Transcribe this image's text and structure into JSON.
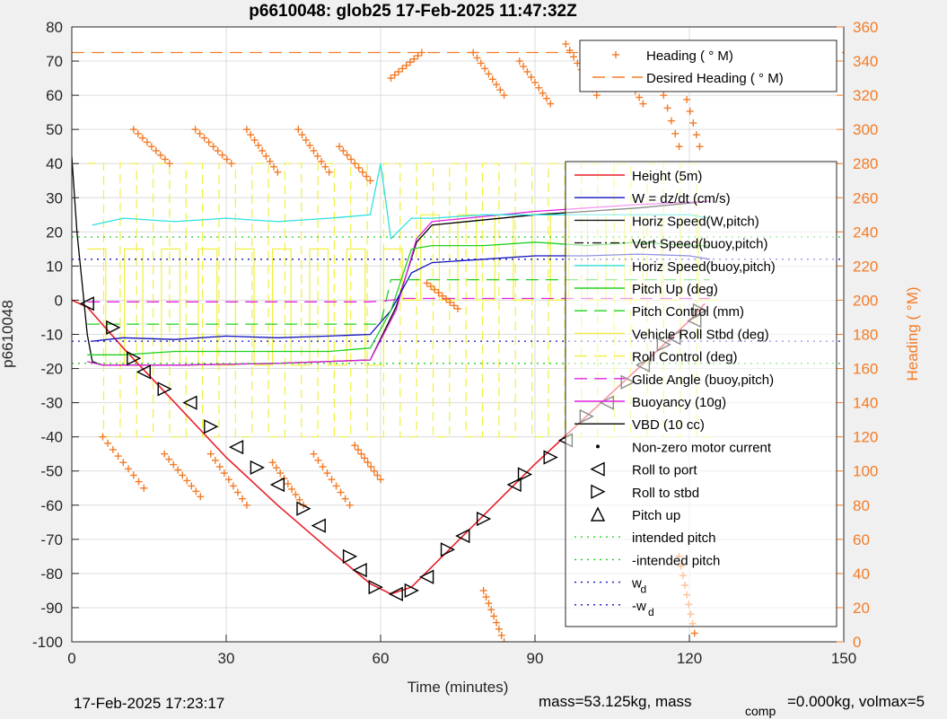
{
  "chart_data": {
    "type": "line",
    "title": "p6610048: glob25 17-Feb-2025 11:47:32Z",
    "xlabel": "Time (minutes)",
    "ylabel": "p6610048",
    "y2label": "Heading (  °M)",
    "xlim": [
      0,
      150
    ],
    "ylim": [
      -100,
      80
    ],
    "y2lim": [
      0,
      360
    ],
    "xticks": [
      "0",
      "30",
      "60",
      "90",
      "120",
      "150"
    ],
    "yticks": [
      "80",
      "70",
      "60",
      "50",
      "40",
      "30",
      "20",
      "10",
      "0",
      "-10",
      "-20",
      "-30",
      "-40",
      "-50",
      "-60",
      "-70",
      "-80",
      "-90",
      "-100"
    ],
    "y2ticks": [
      "360",
      "340",
      "320",
      "300",
      "280",
      "260",
      "240",
      "220",
      "200",
      "180",
      "160",
      "140",
      "120",
      "100",
      "80",
      "60",
      "40",
      "20",
      "0"
    ],
    "grid": true,
    "footer_left": "17-Feb-2025 17:23:17",
    "footer_right_a": "mass=53.125kg, mass",
    "footer_right_sub": "comp",
    "footer_right_b": "=0.000kg, volmax=5",
    "legend_heading": [
      {
        "label": "Heading (  ° M)",
        "color": "#f47b26",
        "style": "plus"
      },
      {
        "label": "Desired Heading (    ° M)",
        "color": "#f47b26",
        "style": "dash"
      }
    ],
    "legend_main": [
      {
        "label": "Height (5m)",
        "color": "#e8202a",
        "style": "solid"
      },
      {
        "label": "W = dz/dt (cm/s)",
        "color": "#1010c0",
        "style": "solid"
      },
      {
        "label": "Horiz Speed(W,pitch)",
        "color": "#1a1a1a",
        "style": "solid"
      },
      {
        "label": "Vert Speed(buoy,pitch)",
        "color": "#1a1a1a",
        "style": "dashdot"
      },
      {
        "label": "Horiz Speed(buoy,pitch)",
        "color": "#30e0e0",
        "style": "solid"
      },
      {
        "label": "Pitch Up (deg)",
        "color": "#20d020",
        "style": "solid"
      },
      {
        "label": "Pitch Control (mm)",
        "color": "#20d020",
        "style": "dash"
      },
      {
        "label": "Vehicle Roll Stbd (deg)",
        "color": "#f0f040",
        "style": "solid"
      },
      {
        "label": "Roll Control (deg)",
        "color": "#f0f040",
        "style": "dash"
      },
      {
        "label": "Glide Angle (buoy,pitch)",
        "color": "#e020e0",
        "style": "dash"
      },
      {
        "label": "Buoyancy (10g)",
        "color": "#e020e0",
        "style": "solid"
      },
      {
        "label": "VBD (10 cc)",
        "color": "#000000",
        "style": "solid"
      },
      {
        "label": "Non-zero motor current",
        "color": "#000000",
        "style": "dot"
      },
      {
        "label": "Roll to port",
        "color": "#000000",
        "style": "tri-left"
      },
      {
        "label": "Roll to stbd",
        "color": "#000000",
        "style": "tri-right"
      },
      {
        "label": "Pitch up",
        "color": "#000000",
        "style": "tri-up"
      },
      {
        "label": "intended pitch",
        "color": "#20d020",
        "style": "dotted"
      },
      {
        "label": "-intended pitch",
        "color": "#20d020",
        "style": "dotted"
      },
      {
        "label": "w",
        "sub": "d",
        "color": "#1010c0",
        "style": "dotted"
      },
      {
        "label": "-w",
        "sub": "d",
        "color": "#1010c0",
        "style": "dotted"
      }
    ],
    "series": [
      {
        "name": "Height (5m)",
        "color": "#e8202a",
        "x": [
          0,
          3,
          10,
          20,
          30,
          40,
          50,
          58,
          62,
          66,
          70,
          80,
          90,
          100,
          110,
          120,
          123
        ],
        "y": [
          0,
          -2,
          -14,
          -30,
          -46,
          -60,
          -73,
          -83,
          -86,
          -84,
          -78,
          -63,
          -48,
          -34,
          -20,
          -6,
          -1
        ]
      },
      {
        "name": "VBD (10 cc)",
        "color": "#000000",
        "x": [
          0,
          1,
          2,
          3,
          4,
          6,
          10,
          20,
          40,
          58,
          63,
          67,
          70,
          90,
          110,
          124
        ],
        "y": [
          42,
          20,
          5,
          -10,
          -18,
          -19,
          -19,
          -19,
          -18.5,
          -17.5,
          -2,
          17,
          22,
          25,
          27,
          29
        ]
      },
      {
        "name": "Buoyancy (10g)",
        "color": "#e020e0",
        "x": [
          3,
          6,
          20,
          40,
          58,
          63,
          67,
          70,
          90,
          110,
          124
        ],
        "y": [
          -18,
          -19,
          -19,
          -18.5,
          -17.5,
          -3,
          18,
          23,
          26,
          28,
          29
        ]
      },
      {
        "name": "W = dz/dt (cm/s)",
        "color": "#1010c0",
        "x": [
          4,
          10,
          20,
          30,
          40,
          50,
          58,
          62,
          66,
          70,
          80,
          90,
          100,
          110,
          120,
          124
        ],
        "y": [
          -12,
          -11,
          -11.5,
          -10.5,
          -11,
          -10.5,
          -10,
          -3,
          8,
          11,
          12,
          13,
          13,
          13.5,
          13,
          12
        ]
      },
      {
        "name": "Horiz Speed(buoy,pitch)",
        "color": "#30e0e0",
        "x": [
          4,
          10,
          20,
          30,
          40,
          50,
          58,
          60,
          62,
          66,
          70,
          80,
          90,
          100,
          110,
          120,
          124
        ],
        "y": [
          22,
          24,
          23,
          24,
          23,
          24,
          25,
          40,
          18,
          24,
          24,
          25,
          25,
          25,
          25,
          25,
          24
        ]
      },
      {
        "name": "Pitch Up (deg)",
        "color": "#20d020",
        "x": [
          3,
          10,
          20,
          30,
          40,
          50,
          58,
          62,
          66,
          70,
          80,
          90,
          100,
          110,
          120,
          124
        ],
        "y": [
          -16,
          -16,
          -15,
          -15,
          -15,
          -15,
          -14,
          -3,
          15,
          16,
          16,
          17,
          16,
          17,
          16,
          16
        ]
      },
      {
        "name": "Pitch Control (mm)",
        "color": "#20d020",
        "x": [
          3,
          58,
          60,
          62,
          124
        ],
        "y": [
          -7,
          -7,
          -7,
          6,
          6
        ]
      },
      {
        "name": "Glide Angle (buoy,pitch)",
        "color": "#e020e0",
        "x": [
          3,
          58,
          62,
          64,
          124
        ],
        "y": [
          -0.5,
          -0.5,
          0,
          0.5,
          0.5
        ]
      },
      {
        "name": "Desired Heading (    ° M)",
        "color": "#f47b26",
        "axis": "right",
        "x": [
          0,
          150
        ],
        "y": [
          345,
          345
        ]
      },
      {
        "name": "intended pitch",
        "color": "#20d020",
        "x": [
          0,
          150
        ],
        "y": [
          18.5,
          18.5
        ]
      },
      {
        "name": "-intended pitch",
        "color": "#20d020",
        "x": [
          0,
          150
        ],
        "y": [
          -18.5,
          -18.5
        ]
      },
      {
        "name": "w",
        "color": "#1010c0",
        "x": [
          0,
          150
        ],
        "y": [
          12,
          12
        ]
      },
      {
        "name": "-w",
        "color": "#1010c0",
        "x": [
          0,
          150
        ],
        "y": [
          -12,
          -12
        ]
      }
    ],
    "markers": {
      "roll_to_port": [
        [
          3,
          -1
        ],
        [
          14,
          -21
        ],
        [
          23,
          -30
        ],
        [
          32,
          -43
        ],
        [
          40,
          -54
        ],
        [
          48,
          -66
        ],
        [
          56,
          -79
        ],
        [
          63,
          -86
        ],
        [
          69,
          -81
        ],
        [
          76,
          -69
        ],
        [
          86,
          -54
        ],
        [
          96,
          -41
        ],
        [
          104,
          -30
        ],
        [
          111,
          -19
        ],
        [
          117,
          -11
        ],
        [
          121,
          -6
        ]
      ],
      "roll_to_stbd": [
        [
          8,
          -8
        ],
        [
          12,
          -17
        ],
        [
          18,
          -26
        ],
        [
          27,
          -37
        ],
        [
          36,
          -49
        ],
        [
          45,
          -61
        ],
        [
          54,
          -75
        ],
        [
          59,
          -84
        ],
        [
          66,
          -85
        ],
        [
          73,
          -73
        ],
        [
          80,
          -64
        ],
        [
          88,
          -51
        ],
        [
          93,
          -46
        ],
        [
          100,
          -34
        ],
        [
          108,
          -24
        ],
        [
          115,
          -13
        ],
        [
          122,
          -3
        ]
      ]
    },
    "heading_clusters": [
      {
        "x0": 6,
        "x1": 14,
        "h0": 120,
        "h1": 90
      },
      {
        "x0": 12,
        "x1": 19,
        "h0": 300,
        "h1": 280
      },
      {
        "x0": 18,
        "x1": 25,
        "h0": 110,
        "h1": 85
      },
      {
        "x0": 24,
        "x1": 31,
        "h0": 300,
        "h1": 280
      },
      {
        "x0": 27,
        "x1": 34,
        "h0": 110,
        "h1": 80
      },
      {
        "x0": 34,
        "x1": 40,
        "h0": 300,
        "h1": 275
      },
      {
        "x0": 39,
        "x1": 45,
        "h0": 105,
        "h1": 80
      },
      {
        "x0": 44,
        "x1": 50,
        "h0": 300,
        "h1": 275
      },
      {
        "x0": 47,
        "x1": 54,
        "h0": 110,
        "h1": 80
      },
      {
        "x0": 52,
        "x1": 58,
        "h0": 290,
        "h1": 270
      },
      {
        "x0": 55,
        "x1": 60,
        "h0": 115,
        "h1": 95
      },
      {
        "x0": 62,
        "x1": 68,
        "h0": 330,
        "h1": 345
      },
      {
        "x0": 69,
        "x1": 75,
        "h0": 210,
        "h1": 195
      },
      {
        "x0": 78,
        "x1": 84,
        "h0": 345,
        "h1": 320
      },
      {
        "x0": 87,
        "x1": 93,
        "h0": 340,
        "h1": 315
      },
      {
        "x0": 96,
        "x1": 102,
        "h0": 350,
        "h1": 320
      },
      {
        "x0": 105,
        "x1": 111,
        "h0": 345,
        "h1": 315
      },
      {
        "x0": 112,
        "x1": 118,
        "h0": 350,
        "h1": 290
      },
      {
        "x0": 117,
        "x1": 122,
        "h0": 345,
        "h1": 290
      },
      {
        "x0": 118,
        "x1": 121,
        "h0": 50,
        "h1": 5
      },
      {
        "x0": 80,
        "x1": 84,
        "h0": 30,
        "h1": 0
      }
    ]
  }
}
